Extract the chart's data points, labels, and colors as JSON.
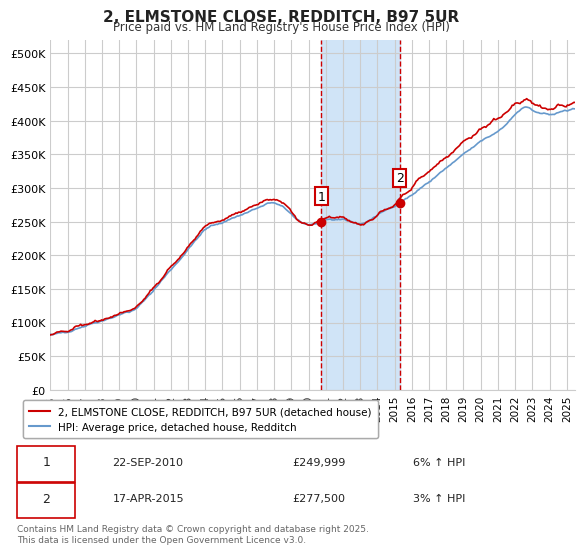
{
  "title": "2, ELMSTONE CLOSE, REDDITCH, B97 5UR",
  "subtitle": "Price paid vs. HM Land Registry's House Price Index (HPI)",
  "ylabel_ticks": [
    "£0",
    "£50K",
    "£100K",
    "£150K",
    "£200K",
    "£250K",
    "£300K",
    "£350K",
    "£400K",
    "£450K",
    "£500K"
  ],
  "ytick_values": [
    0,
    50000,
    100000,
    150000,
    200000,
    250000,
    300000,
    350000,
    400000,
    450000,
    500000
  ],
  "ylim": [
    0,
    520000
  ],
  "xlim_start": 1995.0,
  "xlim_end": 2025.5,
  "sale1_date": 2010.73,
  "sale1_price": 249999,
  "sale1_label": "1",
  "sale2_date": 2015.29,
  "sale2_price": 277500,
  "sale2_label": "2",
  "vline1_x": 2010.73,
  "vline2_x": 2015.29,
  "shade_x1": 2010.73,
  "shade_x2": 2015.29,
  "property_color": "#cc0000",
  "hpi_color": "#6699cc",
  "shade_color": "#d0e4f7",
  "vline_color": "#cc0000",
  "legend_property": "2, ELMSTONE CLOSE, REDDITCH, B97 5UR (detached house)",
  "legend_hpi": "HPI: Average price, detached house, Redditch",
  "table_rows": [
    {
      "num": "1",
      "date": "22-SEP-2010",
      "price": "£249,999",
      "pct": "6% ↑ HPI"
    },
    {
      "num": "2",
      "date": "17-APR-2015",
      "price": "£277,500",
      "pct": "3% ↑ HPI"
    }
  ],
  "footnote": "Contains HM Land Registry data © Crown copyright and database right 2025.\nThis data is licensed under the Open Government Licence v3.0.",
  "xtick_years": [
    1995,
    1996,
    1997,
    1998,
    1999,
    2000,
    2001,
    2002,
    2003,
    2004,
    2005,
    2006,
    2007,
    2008,
    2009,
    2010,
    2011,
    2012,
    2013,
    2014,
    2015,
    2016,
    2017,
    2018,
    2019,
    2020,
    2021,
    2022,
    2023,
    2024,
    2025
  ],
  "background_color": "#ffffff"
}
